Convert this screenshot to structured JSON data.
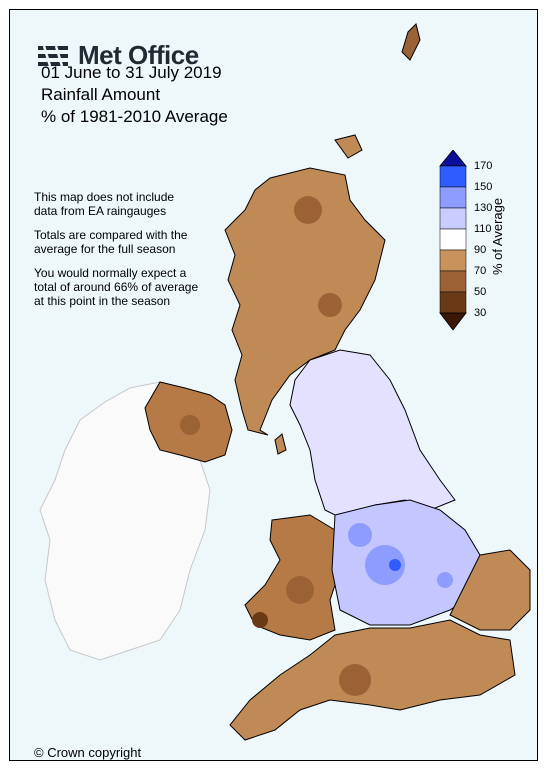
{
  "brand": {
    "name": "Met Office"
  },
  "title": {
    "line1": "01 June to 31 July 2019",
    "line2": "Rainfall Amount",
    "line3": "% of 1981-2010 Average"
  },
  "notes": [
    "This map does not include data from EA raingauges",
    "Totals are compared with the average for the full season",
    "You would normally expect a total of around 66% of average at this point in the season"
  ],
  "legend": {
    "title": "% of Average",
    "ticks": [
      "170",
      "150",
      "130",
      "110",
      "90",
      "70",
      "50",
      "30"
    ],
    "colors": {
      "above_170": "#0a0f9a",
      "150_170": "#2f5cff",
      "130_150": "#8e9cff",
      "110_130": "#c9ccff",
      "90_110": "#ffffff",
      "70_90": "#c8925c",
      "50_70": "#9a6235",
      "30_50": "#6a3a16",
      "below_30": "#3b1707"
    }
  },
  "copyright": "© Crown copyright",
  "colors": {
    "sea": "#eef7fa",
    "ireland_land": "#fafafa",
    "coast": "#000000"
  }
}
